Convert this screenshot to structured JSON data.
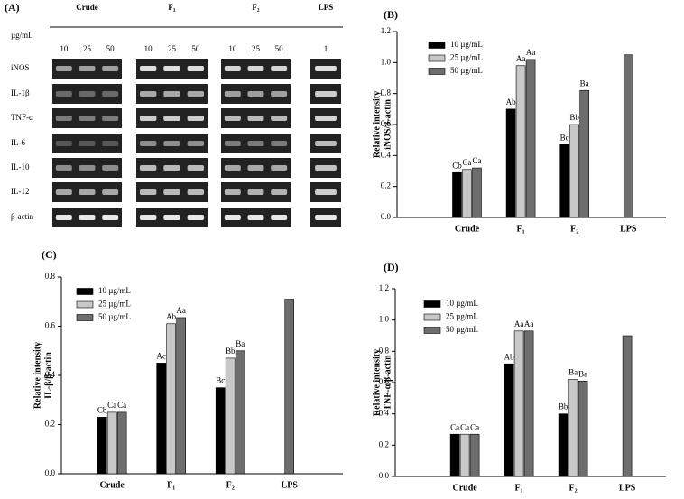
{
  "gel": {
    "panel": "(A)",
    "unit": "µg/mL",
    "groups": [
      {
        "name": "Crude",
        "doses": [
          10,
          25,
          50
        ]
      },
      {
        "name": "F₁",
        "doses": [
          10,
          25,
          50
        ]
      },
      {
        "name": "F₂",
        "doses": [
          10,
          25,
          50
        ]
      },
      {
        "name": "LPS",
        "doses": [
          1
        ]
      }
    ],
    "rows": [
      "iNOS",
      "IL-1β",
      "TNF-α",
      "IL-6",
      "IL-10",
      "IL-12",
      "β-actin"
    ]
  },
  "chart_data": [
    {
      "type": "bar",
      "panel": "(B)",
      "ylabel": [
        "Relative intensity",
        "iNOS/β-actin"
      ],
      "categories": [
        "Crude",
        "F₁",
        "F₂",
        "LPS"
      ],
      "series": [
        {
          "name": "10 µg/mL",
          "color": "#000000",
          "values": [
            0.29,
            0.7,
            0.47,
            null
          ],
          "letters": [
            "Cb",
            "Ab",
            "Bc",
            null
          ]
        },
        {
          "name": "25 µg/mL",
          "color": "#c8c8c8",
          "values": [
            0.31,
            0.98,
            0.6,
            null
          ],
          "letters": [
            "Ca",
            "Aa",
            "Bb",
            null
          ]
        },
        {
          "name": "50 µg/mL",
          "color": "#6e6e6e",
          "values": [
            0.32,
            1.02,
            0.82,
            1.05
          ],
          "letters": [
            "Ca",
            "Aa",
            "Ba",
            null
          ]
        }
      ],
      "ylim": [
        0,
        1.2
      ],
      "yticks": [
        {
          "value": 0,
          "label": "0.0"
        },
        {
          "value": 0.2,
          "label": "0.2"
        },
        {
          "value": 0.4,
          "label": "0.4"
        },
        {
          "value": 0.6,
          "label": "0.6"
        },
        {
          "value": 0.8,
          "label": "0.8"
        },
        {
          "value": 1,
          "label": "1.0"
        },
        {
          "value": 1.2,
          "label": "1.2"
        }
      ]
    },
    {
      "type": "bar",
      "panel": "(C)",
      "ylabel": [
        "Relative intensity",
        "IL-β/β-actin"
      ],
      "categories": [
        "Crude",
        "F₁",
        "F₂",
        "LPS"
      ],
      "series": [
        {
          "name": "10 µg/mL",
          "color": "#000000",
          "values": [
            0.23,
            0.45,
            0.35,
            null
          ],
          "letters": [
            "Cb",
            "Ac",
            "Bc",
            null
          ]
        },
        {
          "name": "25 µg/mL",
          "color": "#c8c8c8",
          "values": [
            0.25,
            0.61,
            0.47,
            null
          ],
          "letters": [
            "Ca",
            "Ab",
            "Bb",
            null
          ]
        },
        {
          "name": "50 µg/mL",
          "color": "#6e6e6e",
          "values": [
            0.25,
            0.635,
            0.5,
            0.71
          ],
          "letters": [
            "Ca",
            "Aa",
            "Ba",
            null
          ]
        }
      ],
      "ylim": [
        0,
        0.8
      ],
      "yticks": [
        {
          "value": 0,
          "label": "0.0"
        },
        {
          "value": 0.2,
          "label": "0.2"
        },
        {
          "value": 0.4,
          "label": "0.4"
        },
        {
          "value": 0.6,
          "label": "0.6"
        },
        {
          "value": 0.8,
          "label": "0.8"
        }
      ]
    },
    {
      "type": "bar",
      "panel": "(D)",
      "ylabel": [
        "Relative intensity",
        "TNF-α/β-actin"
      ],
      "categories": [
        "Crude",
        "F₁",
        "F₂",
        "LPS"
      ],
      "series": [
        {
          "name": "10 µg/mL",
          "color": "#000000",
          "values": [
            0.27,
            0.72,
            0.4,
            null
          ],
          "letters": [
            "Ca",
            "Ab",
            "Bb",
            null
          ]
        },
        {
          "name": "25 µg/mL",
          "color": "#c8c8c8",
          "values": [
            0.27,
            0.93,
            0.62,
            null
          ],
          "letters": [
            "Ca",
            "Aa",
            "Ba",
            null
          ]
        },
        {
          "name": "50 µg/mL",
          "color": "#6e6e6e",
          "values": [
            0.27,
            0.93,
            0.61,
            0.9
          ],
          "letters": [
            "Ca",
            "Aa",
            "Ba",
            null
          ]
        }
      ],
      "ylim": [
        0,
        1.2
      ],
      "yticks": [
        {
          "value": 0,
          "label": "0.0"
        },
        {
          "value": 0.2,
          "label": "0.2"
        },
        {
          "value": 0.4,
          "label": "0.4"
        },
        {
          "value": 0.6,
          "label": "0.6"
        },
        {
          "value": 0.8,
          "label": "0.8"
        },
        {
          "value": 1,
          "label": "1.0"
        },
        {
          "value": 1.2,
          "label": "1.2"
        }
      ]
    }
  ]
}
